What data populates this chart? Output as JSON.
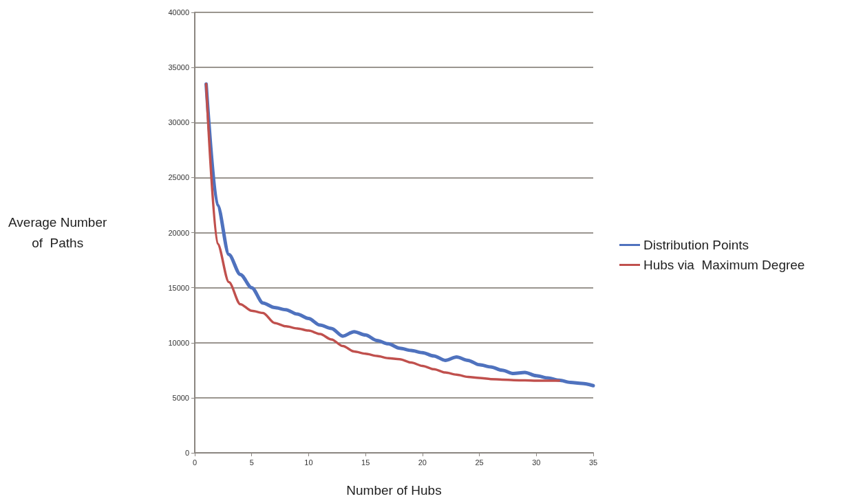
{
  "chart_data": {
    "type": "line",
    "xlabel": "Number of Hubs",
    "ylabel": "Average Number\nof  Paths",
    "x": [
      1,
      2,
      3,
      4,
      5,
      6,
      7,
      8,
      9,
      10,
      11,
      12,
      13,
      14,
      15,
      16,
      17,
      18,
      19,
      20,
      21,
      22,
      23,
      24,
      25,
      26,
      27,
      28,
      29,
      30,
      31,
      32,
      33,
      34,
      35
    ],
    "series": [
      {
        "name": "Distribution Points",
        "color": "#4f72be",
        "values": [
          33500,
          22500,
          18000,
          16200,
          15000,
          13600,
          13200,
          13000,
          12600,
          12200,
          11600,
          11300,
          10600,
          11000,
          10700,
          10200,
          9900,
          9500,
          9300,
          9100,
          8800,
          8400,
          8700,
          8400,
          8000,
          7800,
          7500,
          7200,
          7300,
          7000,
          6800,
          6600,
          6400,
          6300,
          6100
        ]
      },
      {
        "name": "Hubs via  Maximum Degree",
        "color": "#c0504d",
        "values": [
          33500,
          19000,
          15500,
          13500,
          12900,
          12700,
          11800,
          11500,
          11300,
          11100,
          10800,
          10300,
          9700,
          9200,
          9000,
          8800,
          8600,
          8500,
          8200,
          7900,
          7600,
          7300,
          7100,
          6900,
          6800,
          6700,
          6650,
          6600,
          6580,
          6550,
          6550,
          6550,
          null,
          null,
          null
        ]
      }
    ],
    "xlim": [
      0,
      35
    ],
    "xticks": [
      0,
      5,
      10,
      15,
      20,
      25,
      30,
      35
    ],
    "ylim": [
      0,
      40000
    ],
    "yticks": [
      0,
      5000,
      10000,
      15000,
      20000,
      25000,
      30000,
      35000,
      40000
    ],
    "grid": "y",
    "legend": "right",
    "marker": "none",
    "line_style": "solid"
  }
}
